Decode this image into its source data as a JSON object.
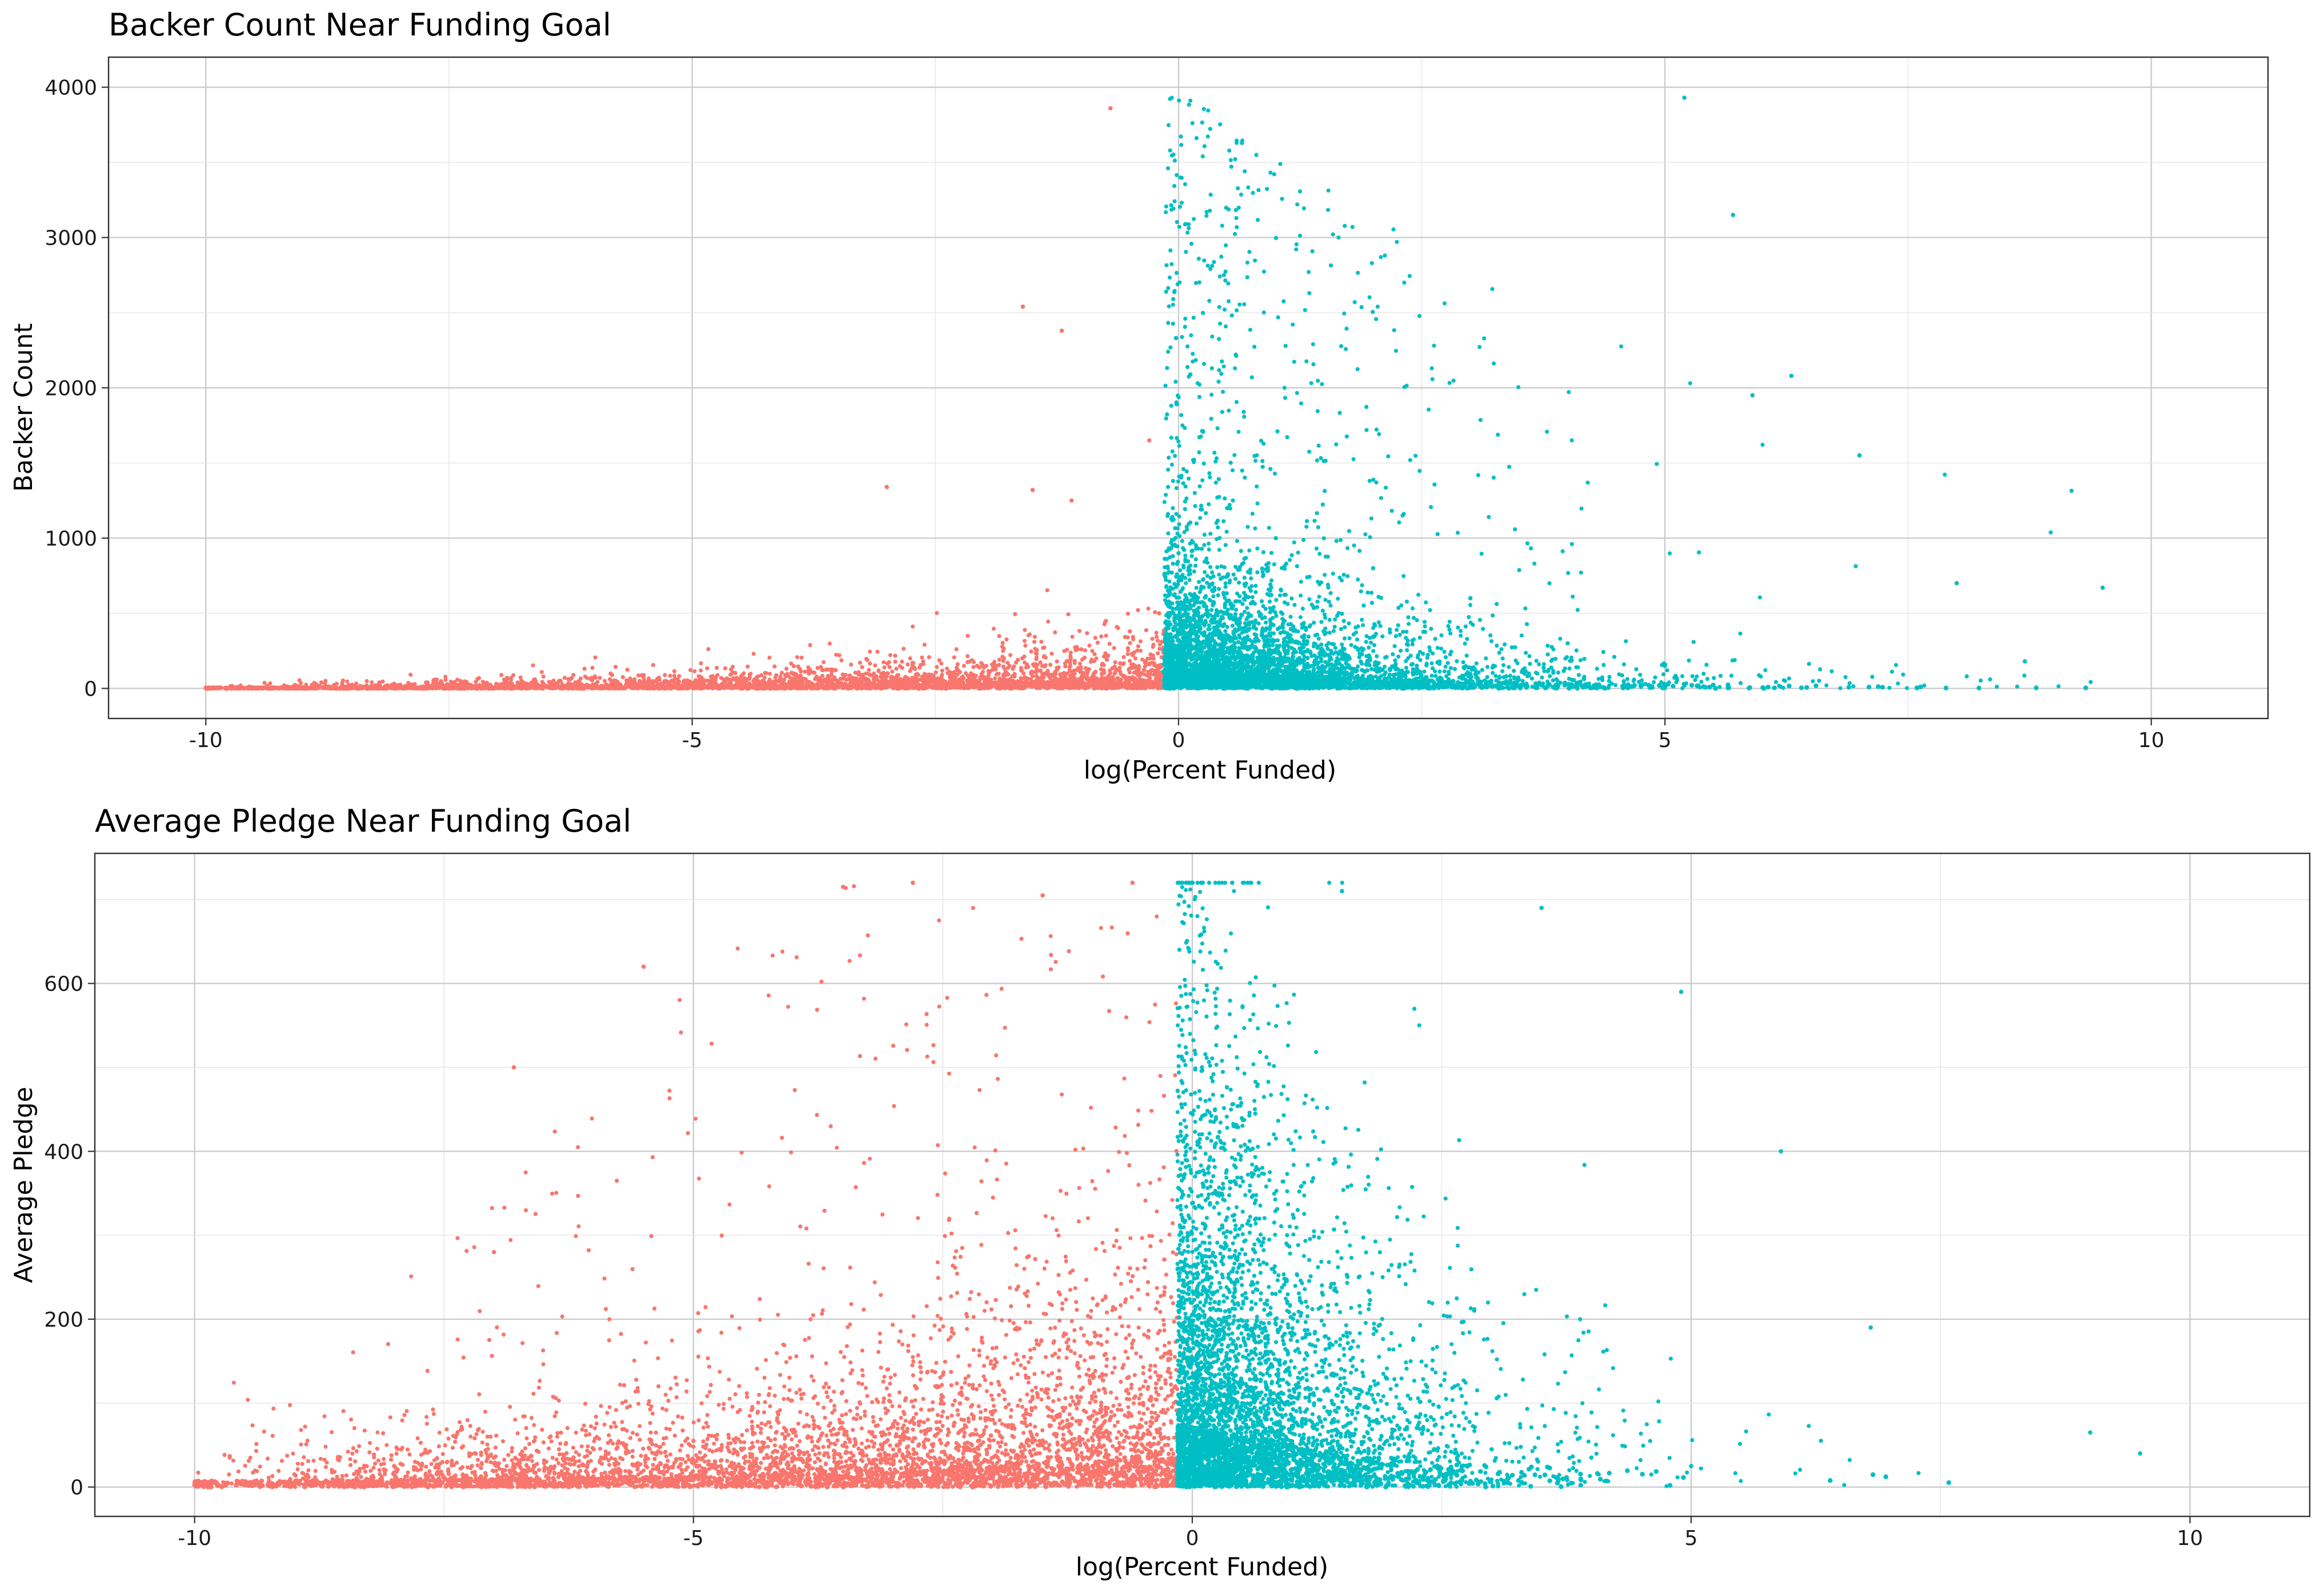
{
  "colors": {
    "failed": "#F8766D",
    "funded": "#00BFC4"
  },
  "chart_data": [
    {
      "type": "scatter",
      "title": "Backer Count Near Funding Goal",
      "xlabel": "log(Percent Funded)",
      "ylabel": "Backer Count",
      "xlim": [
        -11,
        11.2
      ],
      "ylim": [
        -200,
        4200
      ],
      "x_ticks": [
        -10,
        -5,
        0,
        5,
        10
      ],
      "x_tick_labels": [
        "-10",
        "-5",
        "0",
        "5",
        "10"
      ],
      "y_ticks": [
        0,
        1000,
        2000,
        3000,
        4000
      ],
      "y_tick_labels": [
        "0",
        "1000",
        "2000",
        "3000",
        "4000"
      ],
      "grid": true,
      "legend": "none",
      "series": [
        {
          "color": "#F8766D",
          "x_range": [
            -10,
            -0.15
          ],
          "points": [
            [
              -10,
              5
            ],
            [
              -9,
              8
            ],
            [
              -8,
              12
            ],
            [
              -7,
              15
            ],
            [
              -6,
              22
            ],
            [
              -5,
              30
            ],
            [
              -4,
              45
            ],
            [
              -3,
              80
            ],
            [
              -2,
              140
            ],
            [
              -1,
              260
            ],
            [
              -0.5,
              380
            ],
            [
              -0.2,
              500
            ],
            [
              -3.0,
              1340
            ],
            [
              -0.7,
              3860
            ],
            [
              -1.6,
              2540
            ],
            [
              -1.2,
              2380
            ],
            [
              -1.5,
              1320
            ],
            [
              -1.1,
              1250
            ],
            [
              -0.3,
              1650
            ]
          ]
        },
        {
          "color": "#00BFC4",
          "x_range": [
            -0.15,
            9.5
          ],
          "points": [
            [
              0,
              900
            ],
            [
              0.5,
              1200
            ],
            [
              1,
              1000
            ],
            [
              2,
              800
            ],
            [
              3,
              600
            ],
            [
              4,
              300
            ],
            [
              5,
              150
            ],
            [
              5.2,
              3930
            ],
            [
              5.7,
              3150
            ],
            [
              6.3,
              2080
            ],
            [
              5.9,
              1950
            ],
            [
              7,
              1550
            ],
            [
              8,
              700
            ],
            [
              9.5,
              670
            ],
            [
              8.7,
              180
            ]
          ]
        }
      ]
    },
    {
      "type": "scatter",
      "title": "Average Pledge Near Funding Goal",
      "xlabel": "log(Percent Funded)",
      "ylabel": "Average Pledge",
      "xlim": [
        -11,
        11.2
      ],
      "ylim": [
        -35,
        755
      ],
      "x_ticks": [
        -10,
        -5,
        0,
        5,
        10
      ],
      "x_tick_labels": [
        "-10",
        "-5",
        "0",
        "5",
        "10"
      ],
      "y_ticks": [
        0,
        200,
        400,
        600
      ],
      "y_tick_labels": [
        "0",
        "200",
        "400",
        "600"
      ],
      "grid": true,
      "legend": "none",
      "series": [
        {
          "color": "#F8766D",
          "x_range": [
            -10,
            -0.15
          ],
          "points": [
            [
              -10,
              5
            ],
            [
              -9,
              15
            ],
            [
              -8,
              25
            ],
            [
              -7,
              35
            ],
            [
              -6,
              45
            ],
            [
              -5,
              55
            ],
            [
              -4,
              65
            ],
            [
              -3,
              75
            ],
            [
              -2,
              80
            ],
            [
              -1,
              85
            ],
            [
              -3.5,
              715
            ],
            [
              -2.8,
              720
            ],
            [
              -1.5,
              705
            ],
            [
              -0.6,
              720
            ],
            [
              -5.5,
              620
            ],
            [
              -6.8,
              500
            ],
            [
              -7,
              280
            ]
          ]
        },
        {
          "color": "#00BFC4",
          "x_range": [
            -0.15,
            9.5
          ],
          "points": [
            [
              0,
              150
            ],
            [
              0.5,
              100
            ],
            [
              1,
              80
            ],
            [
              2,
              60
            ],
            [
              3,
              45
            ],
            [
              4,
              35
            ],
            [
              5,
              25
            ],
            [
              0.4,
              720
            ],
            [
              1.5,
              710
            ],
            [
              3.5,
              690
            ],
            [
              4.9,
              590
            ],
            [
              5.9,
              400
            ],
            [
              6.8,
              190
            ],
            [
              9,
              65
            ],
            [
              9.5,
              40
            ]
          ]
        }
      ]
    }
  ]
}
